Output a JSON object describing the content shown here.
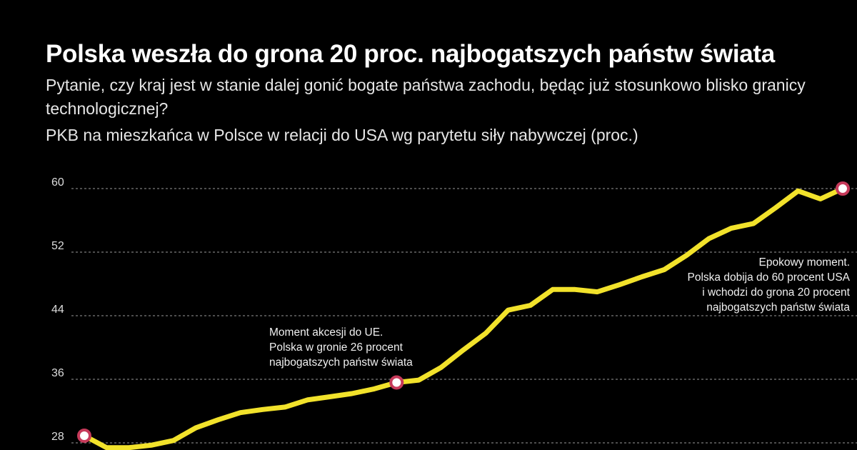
{
  "header": {
    "title": "Polska weszła do grona 20 proc. najbogatszych państw świata",
    "subtitle": "Pytanie, czy kraj jest w stanie dalej gonić bogate państwa zachodu, będąc już stosunkowo blisko granicy technologicznej?",
    "chart_label": "PKB na mieszkańca w Polsce w relacji do USA wg parytetu siły nabywczej (proc.)"
  },
  "annotations": {
    "eu": [
      "Moment akcesji do UE.",
      "Polska w gronie 26 procent",
      "najbogatszych państw świata"
    ],
    "sixty": [
      "Epokowy moment.",
      "Polska dobija do 60 procent USA",
      "i wchodzi do grona 20 procent",
      "najbogatszych państw świata"
    ]
  },
  "colors": {
    "background": "#000000",
    "line": "#f2e22b",
    "marker_stroke": "#c63a5a",
    "marker_fill": "#ffffff",
    "grid": "#9a9a9a"
  },
  "chart_data": {
    "type": "line",
    "title": "PKB na mieszkańca w Polsce w relacji do USA wg parytetu siły nabywczej (proc.)",
    "xlabel": "",
    "ylabel": "",
    "yticks": [
      28,
      36,
      44,
      52,
      60
    ],
    "ylim": [
      27.8,
      60.6
    ],
    "grid": "horizontal dashed",
    "series": [
      {
        "values": [
          28.9,
          27.4,
          27.4,
          27.7,
          28.3,
          29.9,
          30.9,
          31.8,
          32.2,
          32.5,
          33.4,
          33.8,
          34.2,
          34.8,
          35.6,
          35.9,
          37.5,
          39.7,
          41.8,
          44.7,
          45.3,
          47.3,
          47.3,
          47.0,
          47.9,
          48.9,
          49.8,
          51.6,
          53.7,
          55.0,
          55.6,
          57.6,
          59.7,
          58.7,
          60.0
        ]
      }
    ],
    "highlighted_points": [
      {
        "index": 0,
        "value": 28.9
      },
      {
        "index": 14,
        "value": 35.6
      },
      {
        "index": 34,
        "value": 60.0
      }
    ]
  }
}
